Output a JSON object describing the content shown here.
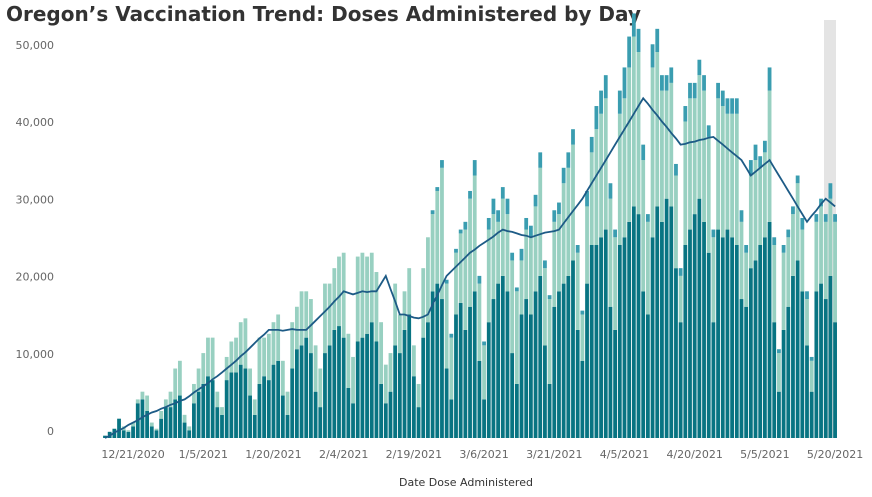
{
  "chart_data": {
    "type": "bar",
    "stacked": true,
    "title": "Oregon’s Vaccination Trend: Doses Administered by Day",
    "x_label": "Date Dose Administered",
    "categories": [
      null,
      null,
      null,
      null,
      null,
      null,
      "12/21/2020",
      null,
      null,
      null,
      null,
      null,
      null,
      null,
      null,
      null,
      null,
      null,
      null,
      null,
      null,
      "1/5/2021",
      null,
      null,
      null,
      null,
      null,
      null,
      null,
      null,
      null,
      null,
      null,
      null,
      null,
      null,
      "1/20/2021",
      null,
      null,
      null,
      null,
      null,
      null,
      null,
      null,
      null,
      null,
      null,
      null,
      null,
      null,
      "2/4/2021",
      null,
      null,
      null,
      null,
      null,
      null,
      null,
      null,
      null,
      null,
      null,
      null,
      null,
      null,
      "2/19/2021",
      null,
      null,
      null,
      null,
      null,
      null,
      null,
      null,
      null,
      null,
      null,
      null,
      null,
      null,
      "3/6/2021",
      null,
      null,
      null,
      null,
      null,
      null,
      null,
      null,
      null,
      null,
      null,
      null,
      null,
      null,
      "3/21/2021",
      null,
      null,
      null,
      null,
      null,
      null,
      null,
      null,
      null,
      null,
      null,
      null,
      null,
      null,
      "4/5/2021",
      null,
      null,
      null,
      null,
      null,
      null,
      null,
      null,
      null,
      null,
      null,
      null,
      null,
      null,
      "4/20/2021",
      null,
      null,
      null,
      null,
      null,
      null,
      null,
      null,
      null,
      null,
      null,
      null,
      null,
      null,
      "5/5/2021",
      null,
      null,
      null,
      null,
      null,
      null,
      null,
      null,
      null,
      null,
      null,
      null,
      null,
      null,
      "5/20/2021"
    ],
    "series": [
      {
        "color": "#087482",
        "values": [
          300,
          800,
          1200,
          2500,
          1000,
          800,
          1500,
          4500,
          5000,
          3500,
          1500,
          1000,
          2500,
          4000,
          4000,
          5000,
          5500,
          2000,
          1000,
          4500,
          6000,
          7000,
          8000,
          7500,
          4000,
          3000,
          7500,
          8500,
          8500,
          9500,
          9000,
          5500,
          3000,
          7000,
          8000,
          7500,
          9500,
          10000,
          5500,
          3000,
          9000,
          11500,
          12000,
          13000,
          11000,
          6000,
          4000,
          11000,
          12000,
          14000,
          14500,
          13000,
          6500,
          4500,
          12500,
          13000,
          13500,
          15000,
          12500,
          7000,
          4500,
          6000,
          12000,
          11000,
          14000,
          16000,
          8000,
          4000,
          13000,
          15000,
          19000,
          20000,
          18000,
          9000,
          5000,
          16000,
          17500,
          14000,
          17000,
          19000,
          10000,
          5000,
          15000,
          18000,
          20000,
          21000,
          19000,
          11000,
          7000,
          16000,
          18000,
          16000,
          19000,
          21000,
          12000,
          7000,
          17000,
          19000,
          20000,
          21000,
          23000,
          14000,
          10000,
          20000,
          25000,
          25000,
          26000,
          27000,
          17000,
          14000,
          25000,
          26000,
          28000,
          30000,
          29000,
          19000,
          16000,
          26000,
          30000,
          28000,
          31000,
          30000,
          22000,
          15000,
          25000,
          27000,
          29000,
          31000,
          28000,
          24000,
          15000,
          27000,
          26000,
          27000,
          26000,
          25000,
          18000,
          17000,
          22000,
          23000,
          25000,
          26000,
          28000,
          15000,
          6000,
          14000,
          17000,
          21000,
          23000,
          19000,
          12000,
          6000,
          19000,
          20000,
          18000,
          21000,
          15000
        ]
      },
      {
        "color": "#98d0c1",
        "values": [
          0,
          0,
          0,
          0,
          500,
          200,
          500,
          500,
          1000,
          2000,
          500,
          200,
          1000,
          1000,
          2000,
          4000,
          4500,
          1000,
          500,
          2500,
          3000,
          4000,
          5000,
          5500,
          2000,
          1000,
          3000,
          4000,
          4500,
          5500,
          6500,
          3500,
          2000,
          6000,
          5000,
          6000,
          5500,
          6000,
          4500,
          3000,
          6000,
          5500,
          7000,
          6000,
          7000,
          6000,
          5000,
          9000,
          8000,
          8000,
          9000,
          11000,
          7000,
          6000,
          11000,
          11000,
          10000,
          9000,
          9000,
          8000,
          5000,
          5000,
          8000,
          5000,
          5000,
          6000,
          4000,
          3000,
          9000,
          11000,
          10000,
          12000,
          17000,
          11000,
          8000,
          8000,
          9000,
          13000,
          14000,
          15000,
          10000,
          7000,
          12000,
          11000,
          8000,
          10000,
          10000,
          12000,
          12000,
          7000,
          9000,
          10000,
          11000,
          14000,
          10000,
          11000,
          11000,
          10000,
          13000,
          14000,
          15000,
          10000,
          6000,
          10000,
          12000,
          15000,
          16000,
          17000,
          14000,
          12000,
          17000,
          18000,
          20000,
          22000,
          21000,
          17000,
          12000,
          22000,
          20000,
          17000,
          14000,
          16000,
          12000,
          6000,
          16000,
          17000,
          15000,
          16000,
          17000,
          15000,
          11000,
          17000,
          17000,
          15000,
          16000,
          17000,
          10000,
          7000,
          12000,
          13000,
          10000,
          11000,
          17000,
          10000,
          5000,
          10000,
          9000,
          8000,
          10000,
          8000,
          6000,
          4000,
          9000,
          10000,
          10000,
          10000,
          13000
        ]
      },
      {
        "color": "#3a9db0",
        "values": [
          0,
          0,
          0,
          0,
          0,
          0,
          0,
          0,
          0,
          0,
          0,
          0,
          0,
          0,
          0,
          0,
          0,
          0,
          0,
          0,
          0,
          0,
          0,
          0,
          0,
          0,
          0,
          0,
          0,
          0,
          0,
          0,
          0,
          0,
          0,
          0,
          0,
          0,
          0,
          0,
          0,
          0,
          0,
          0,
          0,
          0,
          0,
          0,
          0,
          0,
          0,
          0,
          0,
          0,
          0,
          0,
          0,
          0,
          0,
          0,
          0,
          0,
          0,
          0,
          0,
          0,
          0,
          0,
          0,
          0,
          500,
          500,
          1000,
          500,
          500,
          500,
          500,
          1000,
          1000,
          2000,
          1000,
          500,
          1500,
          2000,
          1500,
          1500,
          2000,
          1000,
          500,
          1500,
          1500,
          1500,
          1500,
          2000,
          1000,
          500,
          1500,
          1500,
          2000,
          2000,
          2000,
          1000,
          500,
          2000,
          2000,
          3000,
          3000,
          3000,
          2000,
          1000,
          3000,
          4000,
          4000,
          3000,
          3000,
          2000,
          1000,
          3000,
          3000,
          2000,
          2000,
          2000,
          1500,
          1000,
          2000,
          2000,
          2000,
          2000,
          2000,
          1500,
          1000,
          2000,
          2000,
          2000,
          2000,
          2000,
          1500,
          1000,
          2000,
          2000,
          1500,
          1500,
          3000,
          1000,
          500,
          1000,
          1000,
          1000,
          1000,
          1500,
          1000,
          500,
          1000,
          1000,
          1000,
          2000,
          1000
        ]
      }
    ],
    "line": {
      "color": "#1d5b86",
      "values": [
        0,
        300,
        700,
        1000,
        1300,
        1700,
        2000,
        2300,
        2700,
        3000,
        3300,
        3500,
        3800,
        4000,
        4300,
        4500,
        4800,
        5000,
        5400,
        5900,
        6300,
        6700,
        7100,
        7600,
        8000,
        8500,
        9000,
        9500,
        10000,
        10600,
        11100,
        11700,
        12300,
        12900,
        13400,
        14000,
        14000,
        14000,
        13900,
        14000,
        14100,
        14000,
        14000,
        14000,
        14600,
        15200,
        15800,
        16400,
        17000,
        17700,
        18300,
        19000,
        18800,
        18600,
        18800,
        19000,
        18900,
        19000,
        19000,
        20000,
        21000,
        19300,
        17700,
        16000,
        16000,
        15800,
        15600,
        15500,
        15700,
        16000,
        17300,
        18500,
        19800,
        21000,
        21600,
        22200,
        22800,
        23400,
        24000,
        24400,
        24900,
        25300,
        25700,
        26100,
        26600,
        27000,
        26800,
        26700,
        26500,
        26300,
        26200,
        26000,
        26200,
        26400,
        26600,
        26700,
        26800,
        27000,
        27800,
        28600,
        29400,
        30200,
        31000,
        32000,
        33000,
        34000,
        35000,
        36000,
        37000,
        38000,
        39000,
        40000,
        41000,
        42000,
        43000,
        44000,
        43300,
        42500,
        41800,
        41000,
        40300,
        39500,
        38800,
        38000,
        38100,
        38300,
        38400,
        38600,
        38700,
        38900,
        39000,
        38500,
        38000,
        37500,
        37000,
        36500,
        36000,
        35000,
        34000,
        34500,
        35000,
        35500,
        36000,
        35000,
        34000,
        33000,
        32000,
        31000,
        30000,
        29000,
        28000,
        28800,
        29500,
        30300,
        31000,
        30500,
        30000
      ]
    },
    "ylim": [
      0,
      55000
    ],
    "yticks": [
      0,
      {
        "value": 10000,
        "label": "10,000"
      },
      {
        "value": 20000,
        "label": "20,000"
      },
      {
        "value": 30000,
        "label": "30,000"
      },
      {
        "value": 40000,
        "label": "40,000"
      },
      {
        "value": 50000,
        "label": "50,000"
      }
    ]
  }
}
